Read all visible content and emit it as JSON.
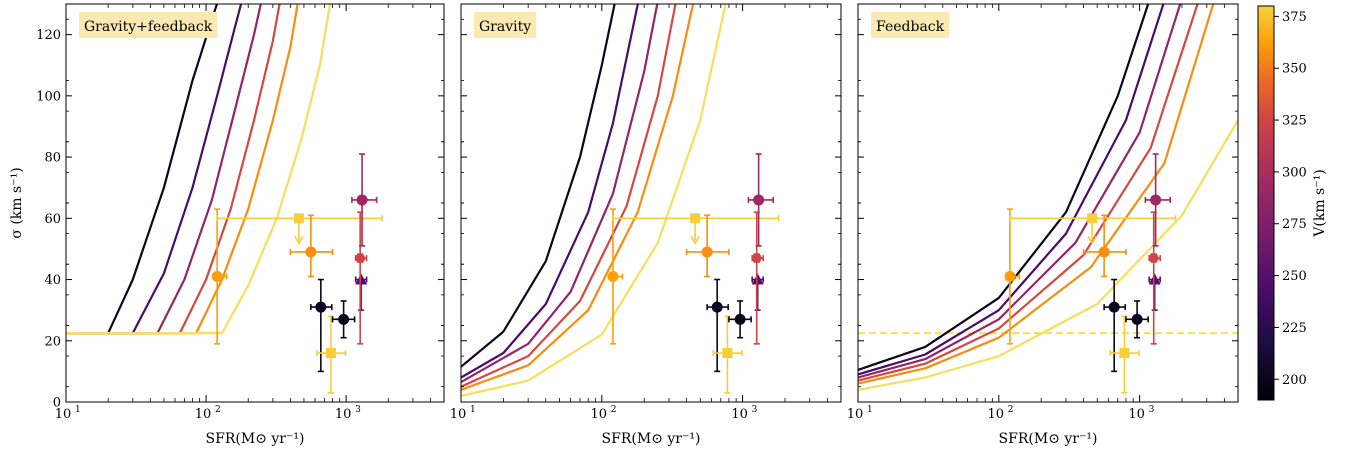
{
  "chart_data": {
    "type": "line",
    "shared": {
      "xlabel": "SFR(M⊙ yr⁻¹)",
      "ylabel": "σ (km s⁻¹)",
      "xscale": "log",
      "xlim": [
        10,
        5000
      ],
      "ylim": [
        0,
        130
      ],
      "x_ticks": [
        {
          "v": 10,
          "base": "10",
          "exp": "1"
        },
        {
          "v": 100,
          "base": "10",
          "exp": "2"
        },
        {
          "v": 1000,
          "base": "10",
          "exp": "3"
        }
      ],
      "y_ticks": [
        0,
        20,
        40,
        60,
        80,
        100,
        120
      ],
      "grid": false
    },
    "colorbar": {
      "label": "V(km s⁻¹)",
      "min": 190,
      "max": 380,
      "ticks": [
        200,
        225,
        250,
        275,
        300,
        325,
        350,
        375
      ],
      "colormap": "inferno"
    },
    "model_velocities": [
      200,
      236,
      272,
      308,
      344,
      380
    ],
    "colors": {
      "v200": "#000004",
      "v236": "#3b0f70",
      "v272": "#8c2981",
      "v308": "#de4968",
      "v344": "#f98c0a",
      "v380": "#f5db4c"
    },
    "panels": [
      {
        "label": "Gravity+feedback",
        "model_lines": [
          {
            "V": 200,
            "floor_until": 20,
            "x": [
              20,
              30,
              50,
              80,
              110,
              130
            ],
            "y": [
              22.5,
              40,
              70,
              105,
              125,
              135
            ]
          },
          {
            "V": 236,
            "floor_until": 30,
            "x": [
              30,
              50,
              80,
              120,
              160,
              190
            ],
            "y": [
              22.5,
              42,
              70,
              100,
              122,
              135
            ]
          },
          {
            "V": 272,
            "floor_until": 45,
            "x": [
              45,
              70,
              110,
              160,
              220,
              260
            ],
            "y": [
              22.5,
              40,
              66,
              95,
              120,
              135
            ]
          },
          {
            "V": 308,
            "floor_until": 65,
            "x": [
              65,
              100,
              150,
              220,
              300,
              350
            ],
            "y": [
              22.5,
              40,
              63,
              92,
              118,
              135
            ]
          },
          {
            "V": 344,
            "floor_until": 85,
            "x": [
              85,
              130,
              200,
              300,
              400,
              470
            ],
            "y": [
              22.5,
              40,
              63,
              92,
              116,
              135
            ]
          },
          {
            "V": 380,
            "floor_until": 130,
            "x": [
              130,
              200,
              320,
              480,
              650,
              800
            ],
            "y": [
              22.5,
              38,
              60,
              86,
              110,
              135
            ]
          }
        ],
        "dashed_floor": null
      },
      {
        "label": "Gravity",
        "model_lines": [
          {
            "V": 200,
            "x": [
              10,
              20,
              40,
              70,
              100,
              130
            ],
            "y": [
              11.5,
              23,
              46,
              80,
              110,
              135
            ]
          },
          {
            "V": 236,
            "x": [
              10,
              20,
              40,
              80,
              120,
              190
            ],
            "y": [
              8,
              16,
              32,
              62,
              91,
              135
            ]
          },
          {
            "V": 272,
            "x": [
              10,
              30,
              60,
              120,
              200,
              260
            ],
            "y": [
              6.5,
              19,
              36,
              68,
              108,
              135
            ]
          },
          {
            "V": 308,
            "x": [
              10,
              30,
              70,
              150,
              250,
              350
            ],
            "y": [
              5,
              15,
              33,
              64,
              100,
              135
            ]
          },
          {
            "V": 344,
            "x": [
              10,
              30,
              80,
              180,
              320,
              470
            ],
            "y": [
              4,
              12,
              30,
              62,
              100,
              135
            ]
          },
          {
            "V": 380,
            "x": [
              10,
              30,
              100,
              250,
              500,
              800
            ],
            "y": [
              2,
              7,
              22,
              52,
              92,
              135
            ]
          }
        ],
        "dashed_floor": null
      },
      {
        "label": "Feedback",
        "model_lines": [
          {
            "V": 200,
            "x": [
              10,
              30,
              100,
              300,
              700,
              1250
            ],
            "y": [
              10.5,
              18,
              34,
              62,
              100,
              135
            ]
          },
          {
            "V": 236,
            "x": [
              10,
              30,
              100,
              300,
              800,
              1600
            ],
            "y": [
              9,
              15.5,
              30,
              55,
              92,
              135
            ]
          },
          {
            "V": 272,
            "x": [
              10,
              30,
              100,
              350,
              1000,
              2100
            ],
            "y": [
              8,
              14,
              27,
              52,
              88,
              135
            ]
          },
          {
            "V": 308,
            "x": [
              10,
              30,
              100,
              400,
              1200,
              2800
            ],
            "y": [
              7,
              12.5,
              24,
              48,
              83,
              135
            ]
          },
          {
            "V": 344,
            "x": [
              10,
              30,
              100,
              450,
              1500,
              3600
            ],
            "y": [
              6,
              11,
              21,
              44,
              78,
              135
            ]
          },
          {
            "V": 380,
            "x": [
              10,
              30,
              100,
              500,
              2000,
              5000
            ],
            "y": [
              4,
              8,
              15,
              32,
              61,
              92
            ]
          }
        ],
        "dashed_floor": {
          "y": 22.5
        }
      }
    ],
    "observations": [
      {
        "x": 120,
        "xlo": 120,
        "xhi": 140,
        "y": 41,
        "ylo": 19,
        "yhi": 63,
        "V": 352,
        "marker": "circle"
      },
      {
        "x": 460,
        "xlo": 120,
        "xhi": 1800,
        "y": 60,
        "ylo": 60,
        "yhi": 60,
        "V": 372,
        "marker": "square",
        "upper_limit": true
      },
      {
        "x": 560,
        "xlo": 400,
        "xhi": 800,
        "y": 49,
        "ylo": 41,
        "yhi": 61,
        "V": 345,
        "marker": "circle"
      },
      {
        "x": 660,
        "xlo": 560,
        "xhi": 790,
        "y": 31,
        "ylo": 10,
        "yhi": 40,
        "V": 200,
        "marker": "circle"
      },
      {
        "x": 780,
        "xlo": 620,
        "xhi": 990,
        "y": 16,
        "ylo": 3,
        "yhi": 28,
        "V": 372,
        "marker": "square"
      },
      {
        "x": 960,
        "xlo": 800,
        "xhi": 1150,
        "y": 27,
        "ylo": 21,
        "yhi": 33,
        "V": 198,
        "marker": "circle"
      },
      {
        "x": 1280,
        "xlo": 1170,
        "xhi": 1400,
        "y": 40,
        "ylo": 30,
        "yhi": 40,
        "V": 240,
        "marker": "triangle"
      },
      {
        "x": 1260,
        "xlo": 1170,
        "xhi": 1400,
        "y": 47,
        "ylo": 19,
        "yhi": 62,
        "V": 305,
        "marker": "hexagon"
      },
      {
        "x": 1300,
        "xlo": 1100,
        "xhi": 1650,
        "y": 66,
        "ylo": 51,
        "yhi": 81,
        "V": 278,
        "marker": "circle"
      }
    ]
  }
}
